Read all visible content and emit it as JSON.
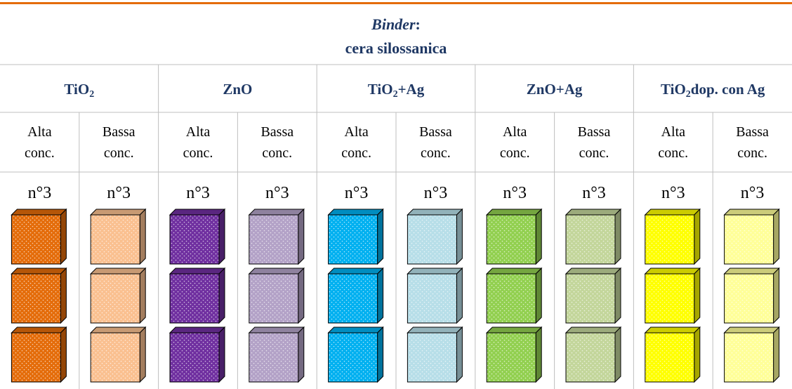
{
  "header": {
    "title": "Binder",
    "title_suffix": ":",
    "subtitle": "cera silossanica"
  },
  "groups": [
    {
      "label": [
        {
          "text": "TiO"
        },
        {
          "text": "2",
          "sub": true
        }
      ],
      "columns": [
        {
          "lines": [
            "Alta",
            "conc."
          ],
          "sample": "n°3",
          "color": "#e46c0a"
        },
        {
          "lines": [
            "Bassa",
            "conc."
          ],
          "sample": "n°3",
          "color": "#fac090"
        }
      ]
    },
    {
      "label": [
        {
          "text": "ZnO"
        }
      ],
      "columns": [
        {
          "lines": [
            "Alta",
            "conc."
          ],
          "sample": "n°3",
          "color": "#7030a0"
        },
        {
          "lines": [
            "Bassa",
            "conc."
          ],
          "sample": "n°3",
          "color": "#b3a2c7"
        }
      ]
    },
    {
      "label": [
        {
          "text": "TiO"
        },
        {
          "text": "2",
          "sub": true
        },
        {
          "text": "+Ag"
        }
      ],
      "columns": [
        {
          "lines": [
            "Alta",
            "conc."
          ],
          "sample": "n°3",
          "color": "#00b0f0"
        },
        {
          "lines": [
            "Bassa",
            "conc."
          ],
          "sample": "n°3",
          "color": "#b7dee8"
        }
      ]
    },
    {
      "label": [
        {
          "text": "ZnO+Ag"
        }
      ],
      "columns": [
        {
          "lines": [
            "Alta",
            "conc."
          ],
          "sample": "n°3",
          "color": "#92d050"
        },
        {
          "lines": [
            "Bassa",
            "conc."
          ],
          "sample": "n°3",
          "color": "#c3d69b"
        }
      ]
    },
    {
      "label": [
        {
          "text": "TiO"
        },
        {
          "text": "2",
          "sub": true
        },
        {
          "text": "dop. con Ag"
        }
      ],
      "columns": [
        {
          "lines": [
            "Alta",
            "conc."
          ],
          "sample": "n°3",
          "color": "#ffff00"
        },
        {
          "lines": [
            "Bassa",
            "conc."
          ],
          "sample": "n°3",
          "color": "#ffff99"
        }
      ]
    }
  ]
}
